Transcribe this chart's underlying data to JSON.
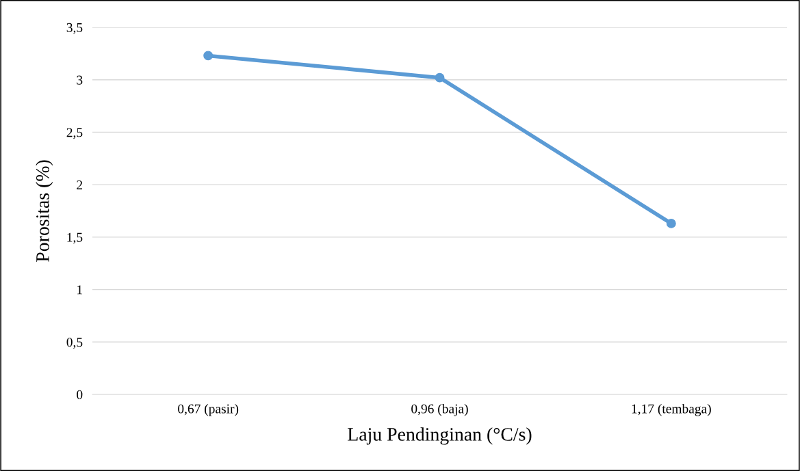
{
  "chart_data": {
    "type": "line",
    "xlabel": "Laju Pendinginan (°C/s)",
    "ylabel": "Porositas (%)",
    "categories": [
      "0,67 (pasir)",
      "0,96 (baja)",
      "1,17 (tembaga)"
    ],
    "series": [
      {
        "color": "#5b9bd5",
        "values": [
          3.23,
          3.02,
          1.63
        ]
      }
    ],
    "ylim": [
      0,
      3.5
    ],
    "yticks": [
      0,
      {
        "value": 0.5,
        "label": "0,5"
      },
      1,
      {
        "value": 1.5,
        "label": "1,5"
      },
      2,
      {
        "value": 2.5,
        "label": "2,5"
      },
      3,
      {
        "value": 3.5,
        "label": "3,5"
      }
    ],
    "grid": "y",
    "marker": "circle",
    "line_style": "solid",
    "legend": false
  }
}
